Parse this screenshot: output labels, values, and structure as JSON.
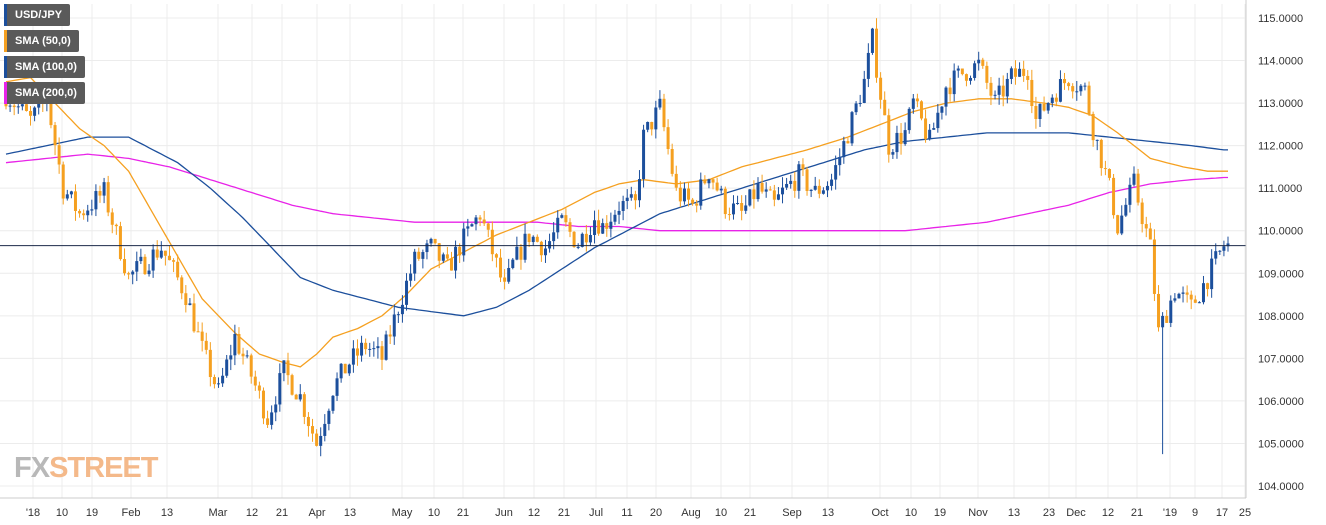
{
  "legend": [
    {
      "label": "USD/JPY",
      "color": "#1c4f9c"
    },
    {
      "label": "SMA (50,0)",
      "color": "#f5a020"
    },
    {
      "label": "SMA (100,0)",
      "color": "#1c4f9c"
    },
    {
      "label": "SMA (200,0)",
      "color": "#e823e8"
    }
  ],
  "last_price": "109.65000",
  "logo": {
    "fx": "FX",
    "street": "STREET"
  },
  "colors": {
    "up": "#1c4f9c",
    "down": "#f5a020",
    "sma50": "#f5a020",
    "sma100": "#1c4f9c",
    "sma200": "#e823e8"
  },
  "chart_data": {
    "type": "candlestick",
    "title": "USD/JPY",
    "ylim": [
      103.7,
      115.3
    ],
    "y_ticks": [
      "115.0000",
      "114.0000",
      "113.0000",
      "112.0000",
      "111.0000",
      "110.0000",
      "109.0000",
      "108.0000",
      "107.0000",
      "106.0000",
      "105.0000",
      "104.0000"
    ],
    "x_ticks": [
      "'18",
      "10",
      "19",
      "Feb",
      "13",
      "Mar",
      "12",
      "21",
      "Apr",
      "13",
      "May",
      "10",
      "21",
      "Jun",
      "12",
      "21",
      "Jul",
      "11",
      "20",
      "Aug",
      "10",
      "21",
      "Sep",
      "13",
      "Oct",
      "10",
      "19",
      "Nov",
      "13",
      "23",
      "Dec",
      "12",
      "21",
      "'19",
      "9",
      "17",
      "25"
    ],
    "last": 109.65,
    "close_path": [
      [
        0,
        113.2
      ],
      [
        6,
        112.6
      ],
      [
        10,
        113.1
      ],
      [
        14,
        111.0
      ],
      [
        18,
        110.4
      ],
      [
        24,
        110.9
      ],
      [
        30,
        108.9
      ],
      [
        38,
        109.6
      ],
      [
        44,
        108.5
      ],
      [
        48,
        107.2
      ],
      [
        52,
        106.2
      ],
      [
        56,
        107.5
      ],
      [
        60,
        106.6
      ],
      [
        64,
        105.6
      ],
      [
        68,
        106.7
      ],
      [
        72,
        106.1
      ],
      [
        76,
        105.0
      ],
      [
        80,
        106.3
      ],
      [
        84,
        106.9
      ],
      [
        88,
        107.3
      ],
      [
        92,
        107.0
      ],
      [
        96,
        108.2
      ],
      [
        100,
        109.3
      ],
      [
        104,
        109.6
      ],
      [
        108,
        109.1
      ],
      [
        112,
        109.8
      ],
      [
        116,
        110.4
      ],
      [
        118,
        109.8
      ],
      [
        122,
        108.6
      ],
      [
        124,
        109.2
      ],
      [
        128,
        109.9
      ],
      [
        132,
        109.6
      ],
      [
        136,
        110.2
      ],
      [
        140,
        109.7
      ],
      [
        144,
        110.3
      ],
      [
        146,
        110.1
      ],
      [
        150,
        110.6
      ],
      [
        154,
        110.6
      ],
      [
        156,
        112.2
      ],
      [
        160,
        112.9
      ],
      [
        164,
        110.9
      ],
      [
        168,
        110.6
      ],
      [
        172,
        111.4
      ],
      [
        176,
        110.6
      ],
      [
        180,
        110.4
      ],
      [
        184,
        111.0
      ],
      [
        188,
        110.6
      ],
      [
        190,
        110.9
      ],
      [
        194,
        111.3
      ],
      [
        198,
        110.9
      ],
      [
        202,
        111.2
      ],
      [
        206,
        112.3
      ],
      [
        210,
        113.5
      ],
      [
        212,
        114.5
      ],
      [
        214,
        113.2
      ],
      [
        216,
        112.0
      ],
      [
        220,
        112.3
      ],
      [
        222,
        113.0
      ],
      [
        226,
        112.1
      ],
      [
        230,
        113.4
      ],
      [
        234,
        113.7
      ],
      [
        238,
        113.9
      ],
      [
        242,
        113.0
      ],
      [
        246,
        113.6
      ],
      [
        250,
        113.8
      ],
      [
        252,
        112.6
      ],
      [
        256,
        113.2
      ],
      [
        260,
        113.6
      ],
      [
        264,
        113.3
      ],
      [
        266,
        112.4
      ],
      [
        270,
        111.0
      ],
      [
        272,
        110.1
      ],
      [
        276,
        111.1
      ],
      [
        280,
        109.6
      ],
      [
        282,
        107.6
      ],
      [
        286,
        108.6
      ],
      [
        290,
        108.2
      ],
      [
        294,
        108.9
      ],
      [
        298,
        109.65
      ]
    ],
    "series": [
      {
        "name": "SMA (50,0)",
        "points": [
          [
            0,
            113.5
          ],
          [
            6,
            113.6
          ],
          [
            10,
            113.2
          ],
          [
            14,
            112.8
          ],
          [
            18,
            112.4
          ],
          [
            24,
            112.0
          ],
          [
            30,
            111.4
          ],
          [
            36,
            110.4
          ],
          [
            42,
            109.4
          ],
          [
            48,
            108.4
          ],
          [
            56,
            107.6
          ],
          [
            62,
            107.1
          ],
          [
            68,
            106.9
          ],
          [
            72,
            106.8
          ],
          [
            76,
            107.1
          ],
          [
            80,
            107.5
          ],
          [
            86,
            107.7
          ],
          [
            92,
            108.0
          ],
          [
            98,
            108.5
          ],
          [
            104,
            109.1
          ],
          [
            112,
            109.5
          ],
          [
            120,
            109.9
          ],
          [
            128,
            110.2
          ],
          [
            136,
            110.5
          ],
          [
            144,
            110.9
          ],
          [
            150,
            111.1
          ],
          [
            156,
            111.2
          ],
          [
            164,
            111.1
          ],
          [
            172,
            111.2
          ],
          [
            180,
            111.5
          ],
          [
            188,
            111.7
          ],
          [
            196,
            111.9
          ],
          [
            206,
            112.2
          ],
          [
            214,
            112.5
          ],
          [
            222,
            112.8
          ],
          [
            230,
            113.0
          ],
          [
            238,
            113.1
          ],
          [
            246,
            113.1
          ],
          [
            254,
            113.0
          ],
          [
            260,
            112.9
          ],
          [
            266,
            112.7
          ],
          [
            272,
            112.3
          ],
          [
            280,
            111.7
          ],
          [
            288,
            111.5
          ],
          [
            294,
            111.4
          ],
          [
            298,
            111.4
          ]
        ]
      },
      {
        "name": "SMA (100,0)",
        "points": [
          [
            0,
            111.8
          ],
          [
            10,
            112.0
          ],
          [
            20,
            112.2
          ],
          [
            30,
            112.2
          ],
          [
            36,
            111.9
          ],
          [
            42,
            111.6
          ],
          [
            50,
            111.0
          ],
          [
            58,
            110.3
          ],
          [
            66,
            109.5
          ],
          [
            72,
            108.9
          ],
          [
            80,
            108.6
          ],
          [
            88,
            108.4
          ],
          [
            96,
            108.2
          ],
          [
            104,
            108.1
          ],
          [
            112,
            108.0
          ],
          [
            120,
            108.2
          ],
          [
            128,
            108.6
          ],
          [
            136,
            109.1
          ],
          [
            144,
            109.6
          ],
          [
            152,
            110.0
          ],
          [
            160,
            110.4
          ],
          [
            170,
            110.7
          ],
          [
            180,
            111.0
          ],
          [
            190,
            111.3
          ],
          [
            200,
            111.6
          ],
          [
            210,
            111.9
          ],
          [
            220,
            112.1
          ],
          [
            230,
            112.2
          ],
          [
            240,
            112.3
          ],
          [
            250,
            112.3
          ],
          [
            260,
            112.3
          ],
          [
            270,
            112.2
          ],
          [
            280,
            112.1
          ],
          [
            290,
            112.0
          ],
          [
            298,
            111.9
          ]
        ]
      },
      {
        "name": "SMA (200,0)",
        "points": [
          [
            0,
            111.6
          ],
          [
            10,
            111.7
          ],
          [
            20,
            111.8
          ],
          [
            30,
            111.7
          ],
          [
            40,
            111.5
          ],
          [
            50,
            111.2
          ],
          [
            60,
            110.9
          ],
          [
            70,
            110.6
          ],
          [
            80,
            110.4
          ],
          [
            90,
            110.3
          ],
          [
            100,
            110.2
          ],
          [
            110,
            110.2
          ],
          [
            120,
            110.2
          ],
          [
            130,
            110.2
          ],
          [
            140,
            110.1
          ],
          [
            150,
            110.1
          ],
          [
            160,
            110.0
          ],
          [
            170,
            110.0
          ],
          [
            180,
            110.0
          ],
          [
            190,
            110.0
          ],
          [
            200,
            110.0
          ],
          [
            210,
            110.0
          ],
          [
            220,
            110.0
          ],
          [
            230,
            110.1
          ],
          [
            240,
            110.2
          ],
          [
            250,
            110.4
          ],
          [
            260,
            110.6
          ],
          [
            270,
            110.9
          ],
          [
            280,
            111.1
          ],
          [
            290,
            111.2
          ],
          [
            298,
            111.25
          ]
        ]
      }
    ],
    "legend_position": "top-left",
    "grid": true
  }
}
